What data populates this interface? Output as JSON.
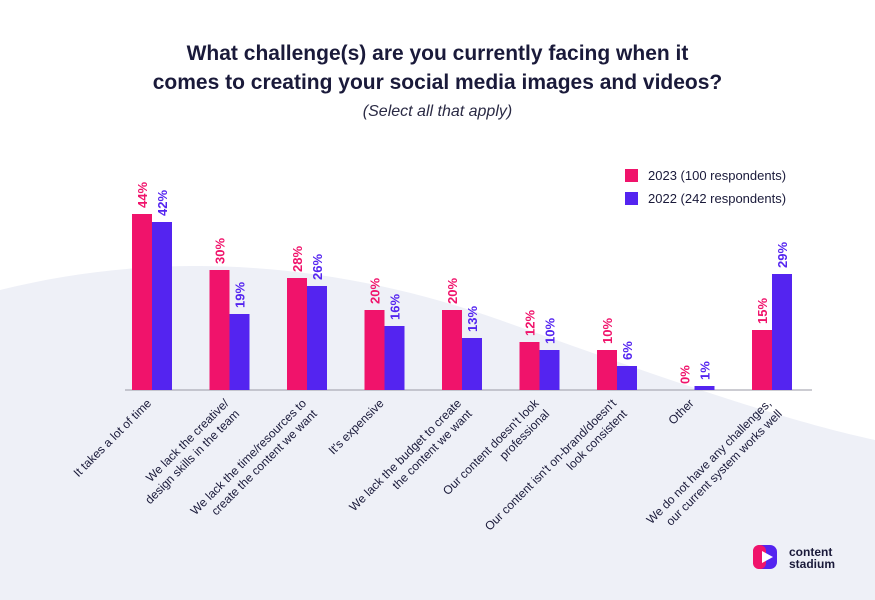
{
  "title_line1": "What challenge(s) are you currently facing when it",
  "title_line2": "comes to creating your social media images and videos?",
  "subtitle": "(Select all that apply)",
  "colors": {
    "series_2023": "#f0136b",
    "series_2022": "#5424f0",
    "text": "#1a1a3a",
    "axis": "#9a9aa6",
    "background_wave": "#eef0f7"
  },
  "logo": {
    "line1": "content",
    "line2": "stadium"
  },
  "chart_data": {
    "type": "bar",
    "title": "What challenge(s) are you currently facing when it comes to creating your social media images and videos?",
    "subtitle": "(Select all that apply)",
    "legend_position": "top-right",
    "grid": false,
    "ylim": [
      0,
      46
    ],
    "categories": [
      [
        "It takes a lot of time"
      ],
      [
        "We lack the creative/",
        "design skills in the team"
      ],
      [
        "We lack the time/resources to",
        "create the content we want"
      ],
      [
        "It's expensive"
      ],
      [
        "We lack the budget to create",
        "the content we want"
      ],
      [
        "Our content doesn't look",
        "professional"
      ],
      [
        "Our content isn't on-brand/doesn't",
        "look consistent"
      ],
      [
        "Other"
      ],
      [
        "We do not have any challenges,",
        "our current system works well"
      ]
    ],
    "series": [
      {
        "name": "2023 (100 respondents)",
        "color": "#f0136b",
        "values": [
          44,
          30,
          28,
          20,
          20,
          12,
          10,
          0,
          15
        ],
        "labels": [
          "44%",
          "30%",
          "28%",
          "20%",
          "20%",
          "12%",
          "10%",
          "0%",
          "15%"
        ]
      },
      {
        "name": "2022 (242 respondents)",
        "color": "#5424f0",
        "values": [
          42,
          19,
          26,
          16,
          13,
          10,
          6,
          1,
          29
        ],
        "labels": [
          "42%",
          "19%",
          "26%",
          "16%",
          "13%",
          "10%",
          "6%",
          "1%",
          "29%"
        ]
      }
    ]
  }
}
